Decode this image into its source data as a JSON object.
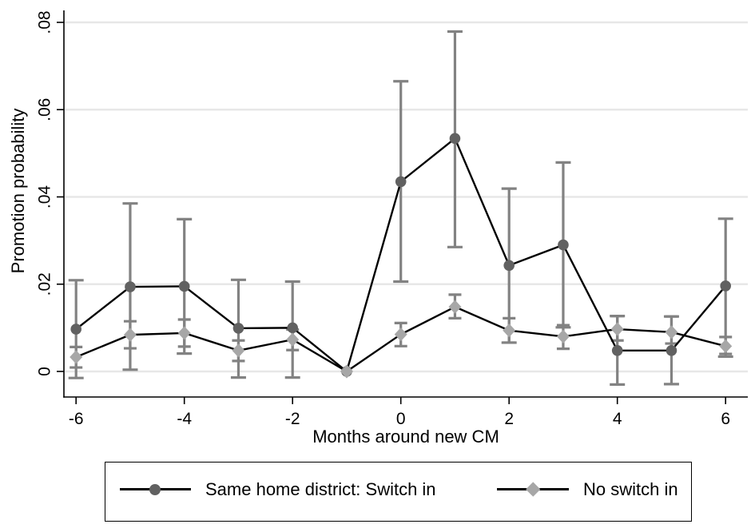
{
  "chart_data": {
    "type": "line",
    "title": "",
    "xlabel": "Months around new CM",
    "ylabel": "Promotion probability",
    "x": [
      -6,
      -5,
      -4,
      -3,
      -2,
      -1,
      0,
      1,
      2,
      3,
      4,
      5,
      6
    ],
    "xlim": [
      -6,
      6
    ],
    "ylim": [
      0,
      0.08
    ],
    "x_ticks": [
      -6,
      -4,
      -2,
      0,
      2,
      4,
      6
    ],
    "x_tick_labels": [
      "-6",
      "-4",
      "-2",
      "0",
      "2",
      "4",
      "6"
    ],
    "y_ticks": [
      0,
      0.02,
      0.04,
      0.06,
      0.08
    ],
    "y_tick_labels": [
      "0",
      ".02",
      ".04",
      ".06",
      ".08"
    ],
    "grid": "horizontal-only",
    "legend_position": "bottom-box",
    "error_bars": true,
    "series": [
      {
        "name": "Same home district: Switch in",
        "marker": "circle",
        "color": "#616161",
        "values": [
          0.0097,
          0.0194,
          0.0195,
          0.0099,
          0.01,
          0.0,
          0.0435,
          0.0534,
          0.0243,
          0.029,
          0.0048,
          0.0048,
          0.0196
        ],
        "ci_low": [
          -0.0015,
          0.0004,
          0.0041,
          -0.0014,
          -0.0014,
          0.0,
          0.0206,
          0.0285,
          0.0066,
          0.0101,
          -0.003,
          -0.0029,
          0.0034
        ],
        "ci_high": [
          0.0209,
          0.0385,
          0.0349,
          0.021,
          0.0206,
          0.0,
          0.0665,
          0.0779,
          0.0419,
          0.0479,
          0.0127,
          0.0126,
          0.035
        ]
      },
      {
        "name": "No switch in",
        "marker": "diamond",
        "color": "#a7a7a7",
        "values": [
          0.0033,
          0.0084,
          0.0088,
          0.0048,
          0.0073,
          0.0,
          0.0085,
          0.0148,
          0.0094,
          0.008,
          0.0097,
          0.009,
          0.0058
        ],
        "ci_low": [
          0.0009,
          0.0053,
          0.0057,
          0.0024,
          0.0049,
          0.0,
          0.0058,
          0.0122,
          0.0066,
          0.0052,
          0.0071,
          0.0064,
          0.004
        ],
        "ci_high": [
          0.0056,
          0.0115,
          0.0119,
          0.0071,
          0.0096,
          0.0,
          0.0111,
          0.0176,
          0.0122,
          0.0106,
          0.0127,
          0.0126,
          0.0079
        ]
      }
    ],
    "colors": {
      "line": "#000000",
      "error_bar": "#828282",
      "gridline": "#e7e7e7",
      "axis": "#000000",
      "text": "#000000",
      "background": "#ffffff"
    }
  }
}
